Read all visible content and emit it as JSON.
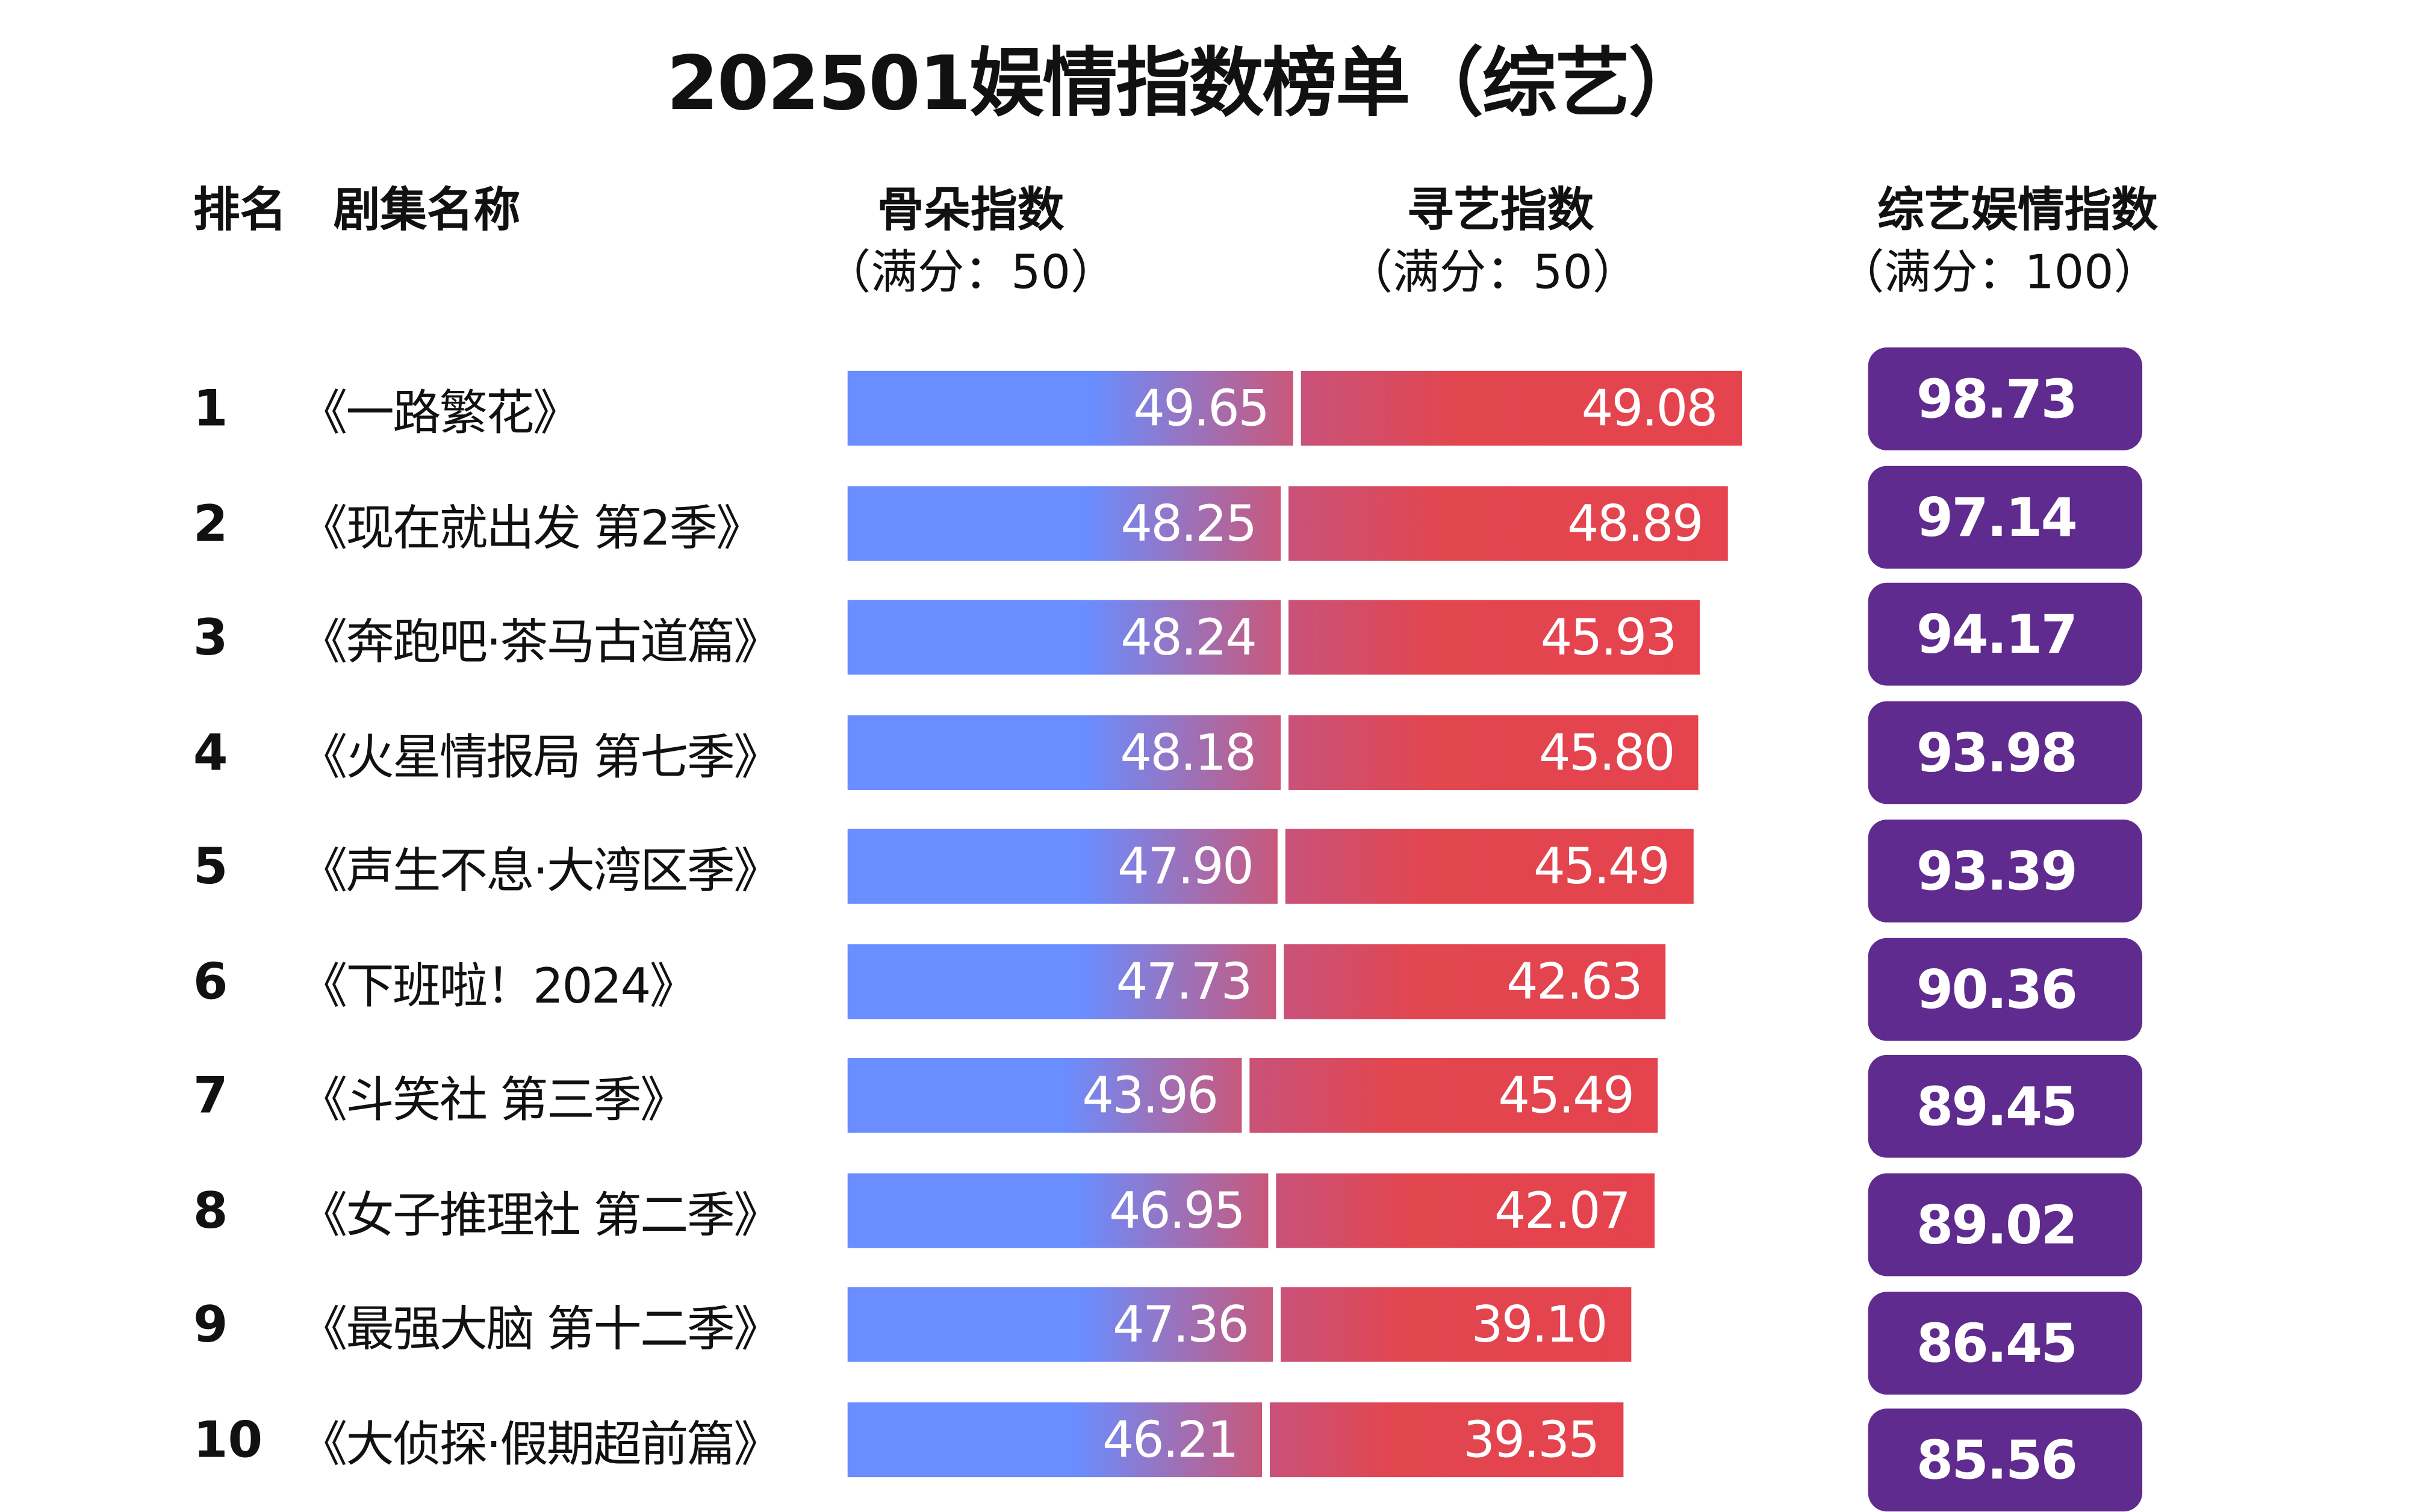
{
  "chart_data": {
    "type": "bar",
    "title": "202501娱情指数榜单（综艺）",
    "columns": {
      "rank": "排名",
      "name": "剧集名称",
      "series1": {
        "label": "骨朵指数",
        "sub": "（满分：50）"
      },
      "series2": {
        "label": "寻艺指数",
        "sub": "（满分：50）"
      },
      "total": {
        "label": "综艺娱情指数",
        "sub": "（满分：100）"
      }
    },
    "xlim": [
      0,
      50
    ],
    "rows": [
      {
        "rank": "1",
        "name": "《一路繁花》",
        "guduo": 49.65,
        "xunyi": 49.08,
        "total": 98.73
      },
      {
        "rank": "2",
        "name": "《现在就出发 第2季》",
        "guduo": 48.25,
        "xunyi": 48.89,
        "total": 97.14
      },
      {
        "rank": "3",
        "name": "《奔跑吧·茶马古道篇》",
        "guduo": 48.24,
        "xunyi": 45.93,
        "total": 94.17
      },
      {
        "rank": "4",
        "name": "《火星情报局 第七季》",
        "guduo": 48.18,
        "xunyi": 45.8,
        "total": 93.98
      },
      {
        "rank": "5",
        "name": "《声生不息·大湾区季》",
        "guduo": 47.9,
        "xunyi": 45.49,
        "total": 93.39
      },
      {
        "rank": "6",
        "name": "《下班啦！2024》",
        "guduo": 47.73,
        "xunyi": 42.63,
        "total": 90.36
      },
      {
        "rank": "7",
        "name": "《斗笑社 第三季》",
        "guduo": 43.96,
        "xunyi": 45.49,
        "total": 89.45
      },
      {
        "rank": "8",
        "name": "《女子推理社 第二季》",
        "guduo": 46.95,
        "xunyi": 42.07,
        "total": 89.02
      },
      {
        "rank": "9",
        "name": "《最强大脑 第十二季》",
        "guduo": 47.36,
        "xunyi": 39.1,
        "total": 86.45
      },
      {
        "rank": "10",
        "name": "《大侦探·假期超前篇》",
        "guduo": 46.21,
        "xunyi": 39.35,
        "total": 85.56
      }
    ],
    "colors": {
      "guduo": "#6a8dff",
      "xunyi": "#e5434e",
      "total": "#5f2b8e"
    }
  }
}
